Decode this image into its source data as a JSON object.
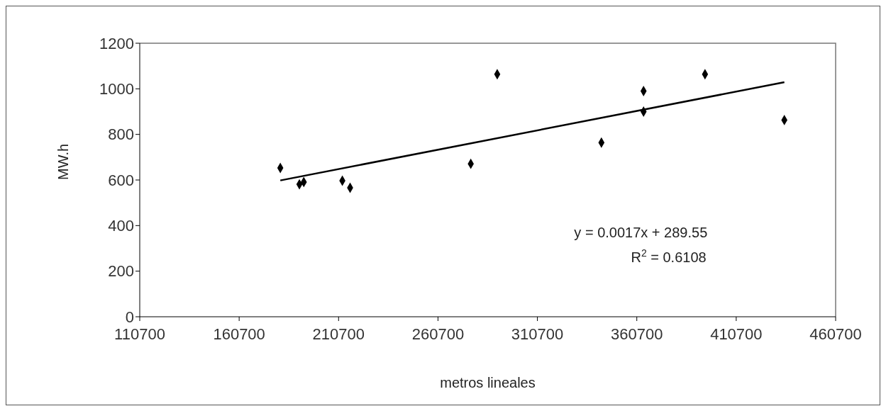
{
  "chart_data": {
    "type": "scatter",
    "xlabel": "metros lineales",
    "ylabel": "MW.h",
    "xlim": [
      110700,
      460700
    ],
    "xticks": [
      110700,
      160700,
      210700,
      260700,
      310700,
      360700,
      410700,
      460700
    ],
    "ylim": [
      0,
      1200
    ],
    "yticks": [
      0,
      200,
      400,
      600,
      800,
      1000,
      1200
    ],
    "marker": "diamond",
    "series": [
      {
        "color": "#000000",
        "x": [
          181400,
          191000,
          193200,
          212600,
          216500,
          277200,
          290500,
          342900,
          364100,
          364100,
          395000,
          434900
        ],
        "values": [
          653,
          581,
          591,
          597,
          566,
          671,
          1064,
          764,
          990,
          900,
          1064,
          863
        ]
      },
      {
        "type": "line",
        "color": "#000000",
        "marker": "none",
        "x": [
          181400,
          434900
        ],
        "values": [
          598,
          1029
        ]
      }
    ],
    "annotations": [
      "y = 0.0017x + 289.55",
      "R$^{2}$ = 0.6108"
    ]
  }
}
